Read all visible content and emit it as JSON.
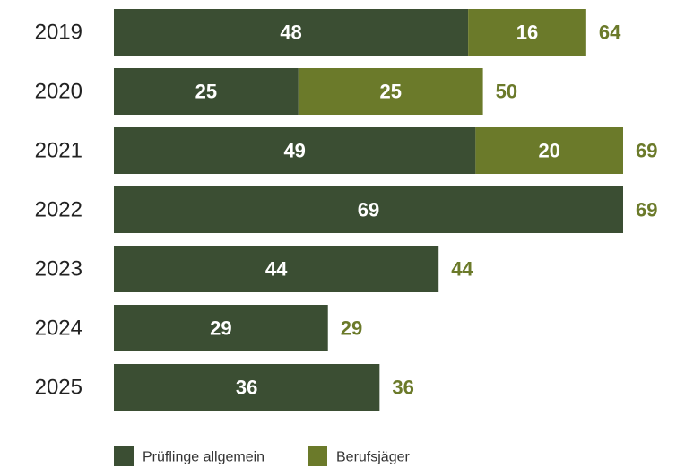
{
  "chart_data": {
    "type": "bar",
    "orientation": "horizontal",
    "stacked": true,
    "title": "",
    "xlabel": "",
    "ylabel": "",
    "categories": [
      "2019",
      "2020",
      "2021",
      "2022",
      "2023",
      "2024",
      "2025"
    ],
    "series": [
      {
        "name": "Prüflinge allgemein",
        "color": "#3b4e33",
        "values": [
          48,
          25,
          49,
          69,
          44,
          29,
          36
        ]
      },
      {
        "name": "Berufsjäger",
        "color": "#6b7a2a",
        "values": [
          16,
          25,
          20,
          0,
          0,
          0,
          0
        ]
      }
    ],
    "totals": [
      64,
      50,
      69,
      69,
      44,
      29,
      36
    ],
    "total_color": "#6b7a2a",
    "xlim": [
      0,
      69
    ],
    "grid": false,
    "legend_position": "bottom"
  }
}
